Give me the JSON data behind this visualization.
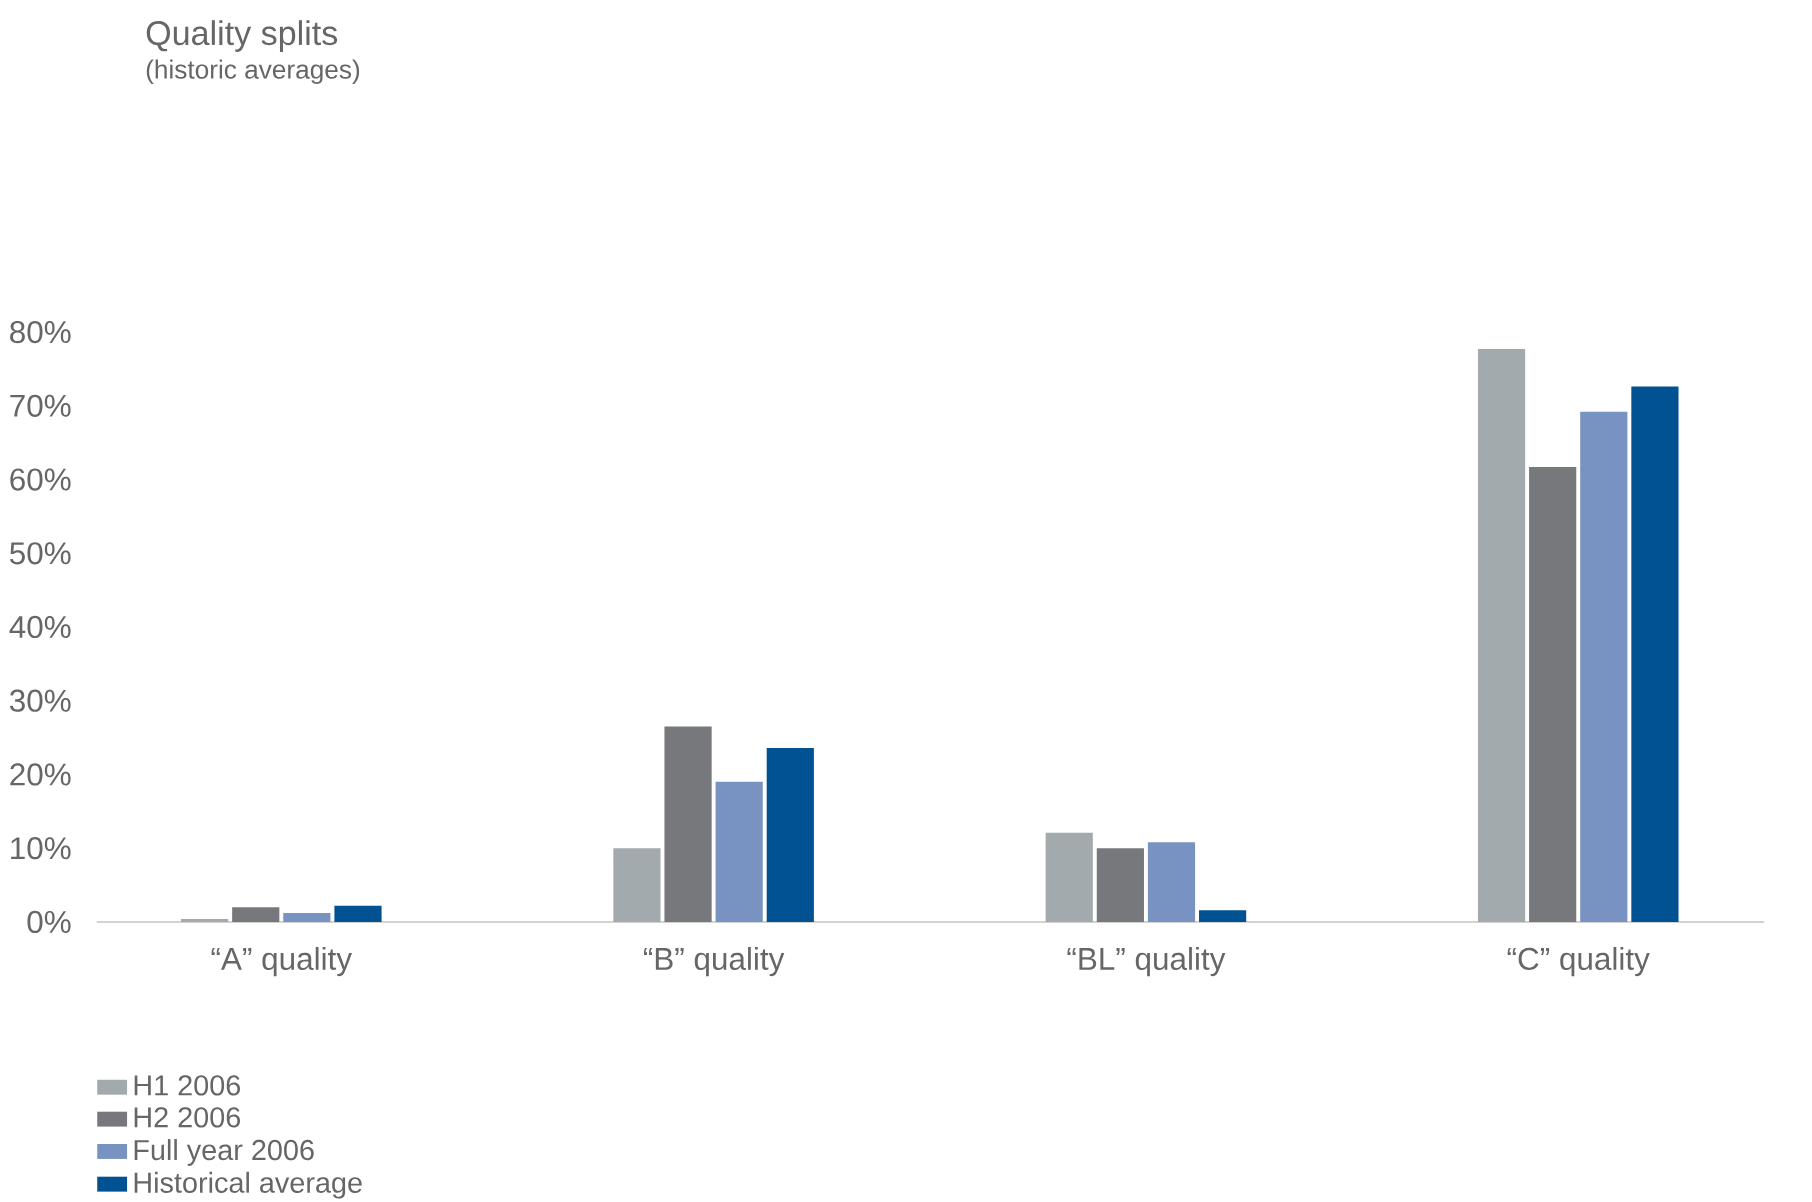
{
  "chart_data": {
    "type": "bar",
    "title": "Quality splits",
    "subtitle": "(historic averages)",
    "categories": [
      "“A” quality",
      "“B” quality",
      "“BL” quality",
      "“C” quality"
    ],
    "series": [
      {
        "name": "H1 2006",
        "color": "#a3aaad",
        "values": [
          0.4,
          10.0,
          12.1,
          77.7
        ]
      },
      {
        "name": "H2 2006",
        "color": "#77787b",
        "values": [
          2.0,
          26.5,
          10.0,
          61.7
        ]
      },
      {
        "name": "Full year 2006",
        "color": "#7893c1",
        "values": [
          1.2,
          19.0,
          10.8,
          69.2
        ]
      },
      {
        "name": "Historical average",
        "color": "#005293",
        "values": [
          2.2,
          23.6,
          1.6,
          72.6
        ]
      }
    ],
    "ylim": [
      0,
      80
    ],
    "yticks": [
      {
        "value": 0,
        "label": "0%"
      },
      {
        "value": 10,
        "label": "10%"
      },
      {
        "value": 20,
        "label": "20%"
      },
      {
        "value": 30,
        "label": "30%"
      },
      {
        "value": 40,
        "label": "40%"
      },
      {
        "value": 50,
        "label": "50%"
      },
      {
        "value": 60,
        "label": "60%"
      },
      {
        "value": 70,
        "label": "70%"
      },
      {
        "value": 80,
        "label": "80%"
      }
    ],
    "grid": false,
    "legend": "bottom left"
  }
}
